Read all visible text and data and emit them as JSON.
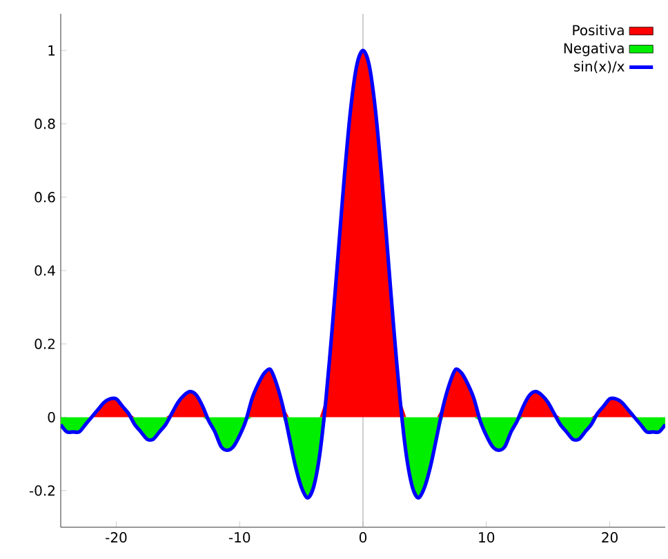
{
  "chart_data": {
    "type": "area",
    "x": [
      -24.5,
      -24,
      -23.5,
      -23,
      -22.5,
      -22,
      -21.5,
      -21,
      -20.5,
      -20,
      -19.5,
      -19,
      -18.5,
      -18,
      -17.5,
      -17,
      -16.5,
      -16,
      -15.5,
      -15,
      -14.5,
      -14,
      -13.5,
      -13,
      -12.5,
      -12,
      -11.5,
      -11,
      -10.5,
      -10,
      -9.5,
      -9,
      -8.5,
      -8,
      -7.5,
      -7,
      -6.5,
      -6,
      -5.5,
      -5,
      -4.5,
      -4,
      -3.5,
      -3,
      -2.5,
      -2,
      -1.5,
      -1,
      -0.5,
      0,
      0.5,
      1,
      1.5,
      2,
      2.5,
      3,
      3.5,
      4,
      4.5,
      5,
      5.5,
      6,
      6.5,
      7,
      7.5,
      8,
      8.5,
      9,
      9.5,
      10,
      10.5,
      11,
      11.5,
      12,
      12.5,
      13,
      13.5,
      14,
      14.5,
      15,
      15.5,
      16,
      16.5,
      17,
      17.5,
      18,
      18.5,
      19,
      19.5,
      20,
      20.5,
      21,
      21.5,
      22,
      22.5,
      23,
      23.5,
      24,
      24.5
    ],
    "series": [
      {
        "name": "Positiva",
        "color": "#ff0000",
        "values": [
          0,
          0,
          0,
          0,
          0,
          0,
          0.02,
          0.04,
          0.05,
          0.05,
          0.03,
          0.01,
          0,
          0,
          0,
          0,
          0,
          0,
          0.01,
          0.04,
          0.06,
          0.07,
          0.06,
          0.03,
          0,
          0,
          0,
          0,
          0,
          0,
          0,
          0.05,
          0.09,
          0.12,
          0.13,
          0.09,
          0.03,
          0,
          0,
          0,
          0,
          0,
          0,
          0.05,
          0.24,
          0.45,
          0.66,
          0.84,
          0.96,
          1,
          0.96,
          0.84,
          0.66,
          0.45,
          0.24,
          0.05,
          0,
          0,
          0,
          0,
          0,
          0,
          0.03,
          0.09,
          0.13,
          0.12,
          0.09,
          0.05,
          0,
          0,
          0,
          0,
          0,
          0,
          0,
          0.03,
          0.06,
          0.07,
          0.06,
          0.04,
          0.01,
          0,
          0,
          0,
          0,
          0,
          0,
          0.01,
          0.03,
          0.05,
          0.05,
          0.04,
          0.02,
          0,
          0,
          0,
          0,
          0,
          0
        ]
      },
      {
        "name": "Negativa",
        "color": "#00ee00",
        "values": [
          -0.02,
          -0.04,
          -0.04,
          -0.04,
          -0.02,
          0,
          0,
          0,
          0,
          0,
          0,
          0,
          -0.02,
          -0.04,
          -0.06,
          -0.06,
          -0.04,
          -0.02,
          0,
          0,
          0,
          0,
          0,
          0,
          -0.01,
          -0.04,
          -0.08,
          -0.09,
          -0.08,
          -0.05,
          -0.01,
          0,
          0,
          0,
          0,
          0,
          0,
          -0.05,
          -0.13,
          -0.19,
          -0.22,
          -0.19,
          -0.1,
          0,
          0,
          0,
          0,
          0,
          0,
          0,
          0,
          0,
          0,
          0,
          0,
          0,
          -0.1,
          -0.19,
          -0.22,
          -0.19,
          -0.13,
          -0.05,
          0,
          0,
          0,
          0,
          0,
          0,
          -0.01,
          -0.05,
          -0.08,
          -0.09,
          -0.08,
          -0.04,
          -0.01,
          0,
          0,
          0,
          0,
          0,
          0,
          -0.02,
          -0.04,
          -0.06,
          -0.06,
          -0.04,
          -0.02,
          0,
          0,
          0,
          0,
          0,
          0,
          0,
          -0.02,
          -0.04,
          -0.04,
          -0.04,
          -0.02
        ]
      },
      {
        "name": "sin(x)/x",
        "type": "line",
        "color": "#0000ff",
        "line_style": "solid",
        "values": [
          -0.02,
          -0.04,
          -0.04,
          -0.04,
          -0.02,
          0,
          0.02,
          0.04,
          0.05,
          0.05,
          0.03,
          0.01,
          -0.02,
          -0.04,
          -0.06,
          -0.06,
          -0.04,
          -0.02,
          0.01,
          0.04,
          0.06,
          0.07,
          0.06,
          0.03,
          -0.01,
          -0.04,
          -0.08,
          -0.09,
          -0.08,
          -0.05,
          -0.01,
          0.05,
          0.09,
          0.12,
          0.13,
          0.09,
          0.03,
          -0.05,
          -0.13,
          -0.19,
          -0.22,
          -0.19,
          -0.1,
          0.05,
          0.24,
          0.45,
          0.66,
          0.84,
          0.96,
          1,
          0.96,
          0.84,
          0.66,
          0.45,
          0.24,
          0.05,
          -0.1,
          -0.19,
          -0.22,
          -0.19,
          -0.13,
          -0.05,
          0.03,
          0.09,
          0.13,
          0.12,
          0.09,
          0.05,
          -0.01,
          -0.05,
          -0.08,
          -0.09,
          -0.08,
          -0.04,
          -0.01,
          0.03,
          0.06,
          0.07,
          0.06,
          0.04,
          0.01,
          -0.02,
          -0.04,
          -0.06,
          -0.06,
          -0.04,
          -0.02,
          0.01,
          0.03,
          0.05,
          0.05,
          0.04,
          0.02,
          0,
          -0.02,
          -0.04,
          -0.04,
          -0.04,
          -0.02
        ]
      }
    ],
    "xlim": [
      -24.5,
      24.5
    ],
    "ylim": [
      -0.3,
      1.1
    ],
    "xticks": [
      -20,
      -10,
      0,
      10,
      20
    ],
    "yticks": [
      -0.2,
      0,
      0.2,
      0.4,
      0.6,
      0.8,
      1
    ],
    "ref_lines": [
      {
        "axis": "x",
        "value": 0,
        "color": "#a0a0a0"
      }
    ],
    "legend": "top right",
    "grid": false
  }
}
